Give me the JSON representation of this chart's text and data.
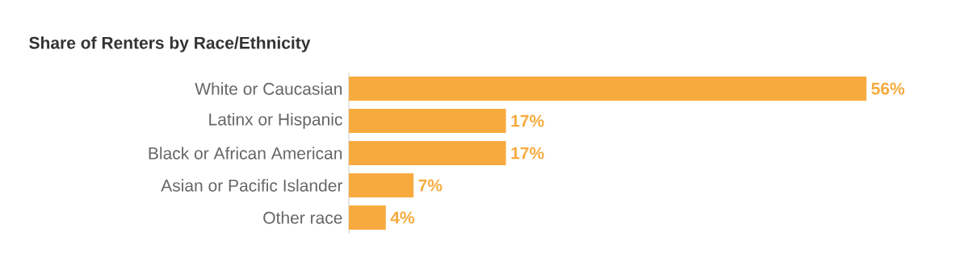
{
  "chart_data": {
    "type": "bar",
    "orientation": "horizontal",
    "title": "Share of Renters by Race/Ethnicity",
    "categories": [
      "White or Caucasian",
      "Latinx or Hispanic",
      "Black or African American",
      "Asian or Pacific Islander",
      "Other race"
    ],
    "values": [
      56,
      17,
      17,
      7,
      4
    ],
    "value_labels": [
      "56%",
      "17%",
      "17%",
      "7%",
      "4%"
    ],
    "color": "#f7ab3f"
  }
}
